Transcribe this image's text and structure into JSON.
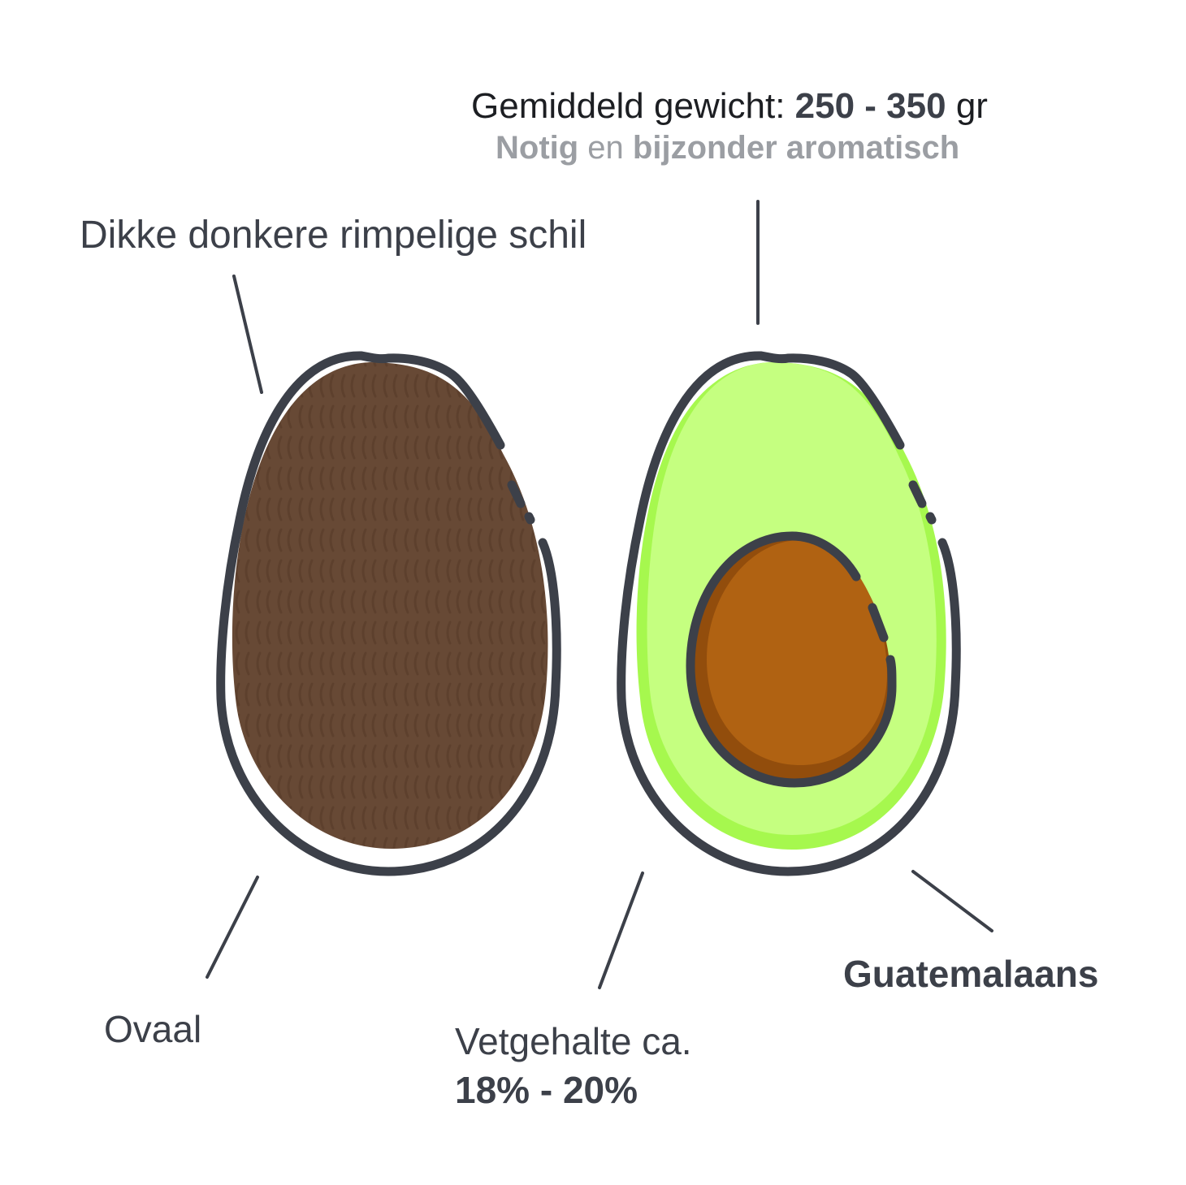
{
  "header": {
    "weight_prefix": "Gemiddeld gewicht: ",
    "weight_value": "250 - 350",
    "weight_unit": " gr",
    "taste_part1": "Notig",
    "taste_part2": " en ",
    "taste_part3": "bijzonder aromatisch"
  },
  "labels": {
    "skin": "Dikke donkere rimpelige schil",
    "shape": "Ovaal",
    "fat_prefix": "Vetgehalte ca.",
    "fat_value": "18% - 20%",
    "variety": "Guatemalaans"
  },
  "colors": {
    "outline": "#3c4049",
    "skin": "#674935",
    "flesh": "#c5ff80",
    "flesh_edge": "#a6f84e",
    "pit": "#b06212",
    "pit_shade": "#924d0c",
    "muted_text": "#9b9ea3"
  }
}
